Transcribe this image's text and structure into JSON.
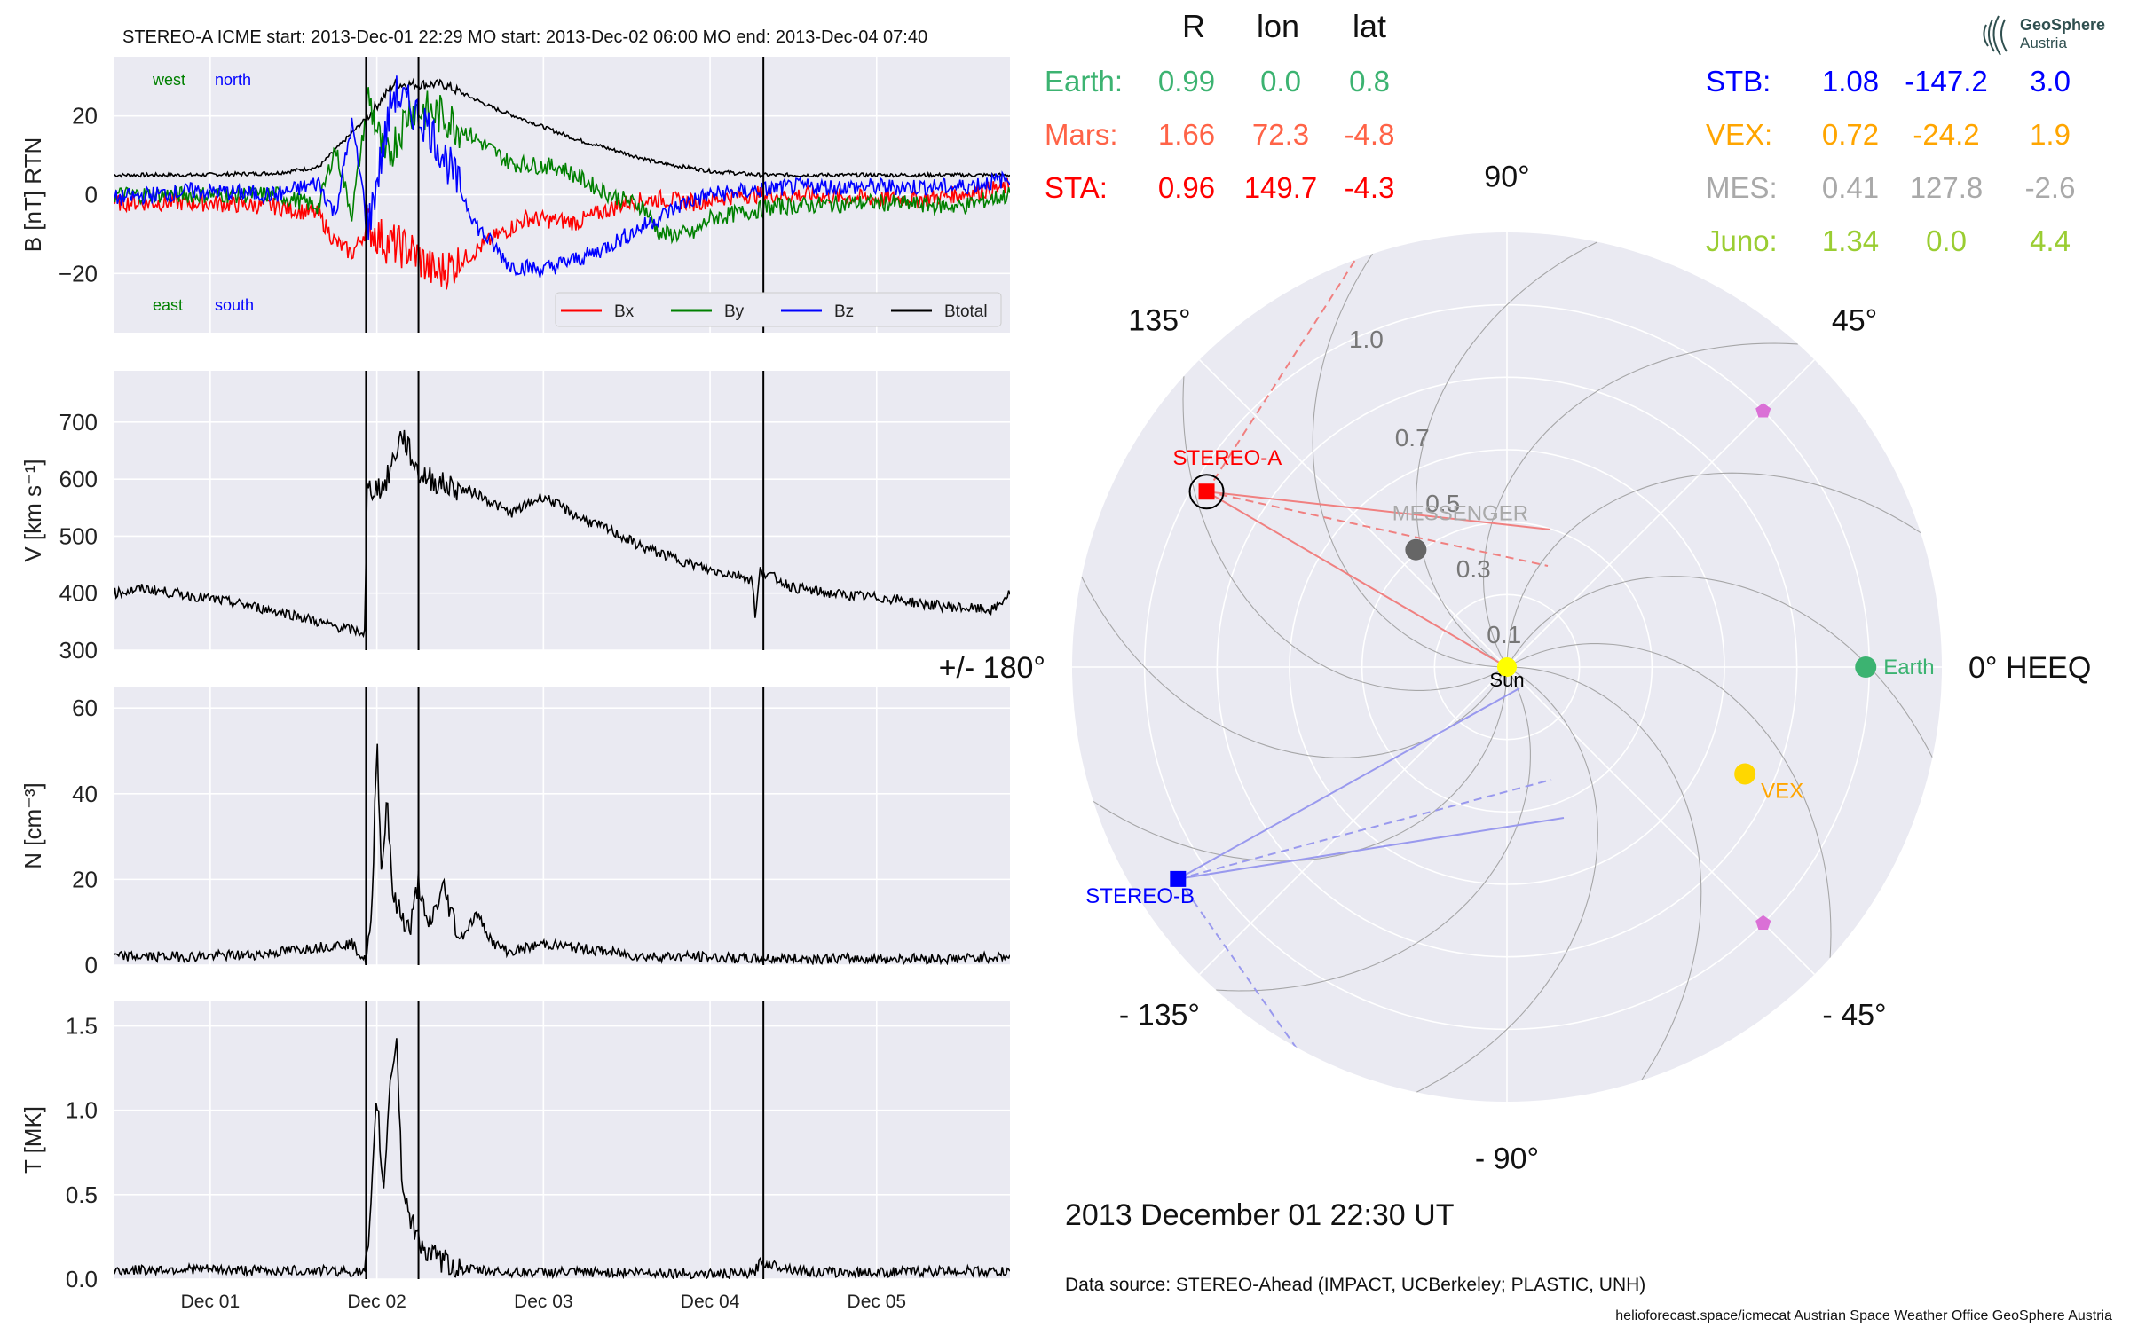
{
  "figure_title": "STEREO-A    ICME start: 2013-Dec-01 22:29   MO start: 2013-Dec-02 06:00   MO end: 2013-Dec-04 07:40",
  "timestamp": "2013 December 01  22:30 UT",
  "data_source": "Data source: STEREO-Ahead (IMPACT, UCBerkeley; PLASTIC, UNH)",
  "footer": "helioforecast.space/icmecat   Austrian Space Weather Office   GeoSphere Austria",
  "logo": {
    "line1": "GeoSphere",
    "line2": "Austria"
  },
  "colors": {
    "panel_bg": "#eaeaf2",
    "grid": "#ffffff",
    "bx": "#ff0000",
    "by": "#008000",
    "bz": "#0000ff",
    "btotal": "#000000",
    "earth": "#3cb371",
    "mars": "#ff6347",
    "sta": "#ff0000",
    "stb": "#0000ff",
    "vex": "#ffa500",
    "mes": "#a9a9a9",
    "juno": "#9acd32",
    "sun": "#ffff00"
  },
  "chart_data": [
    {
      "type": "line",
      "panel": "magnetic-field",
      "ylabel": "B [nT] RTN",
      "ylim": [
        -35,
        35
      ],
      "yticks": [
        "20",
        "0",
        "−20"
      ],
      "ytick_values": [
        20,
        0,
        -20
      ],
      "x_days": "days since 2013-11-30 00:00",
      "xlim": [
        1.42,
        6.8
      ],
      "annotations": {
        "west": "west",
        "north": "north",
        "east": "east",
        "south": "south"
      },
      "legend": {
        "placement": "lower-right",
        "entries": [
          "Bx",
          "By",
          "Bz",
          "Btotal"
        ]
      },
      "series": [
        {
          "name": "Btotal",
          "points": [
            [
              1.42,
              5
            ],
            [
              1.9,
              5
            ],
            [
              2.4,
              5.5
            ],
            [
              2.65,
              7
            ],
            [
              2.95,
              20
            ],
            [
              3.1,
              28
            ],
            [
              3.4,
              28
            ],
            [
              3.7,
              22
            ],
            [
              4.2,
              14
            ],
            [
              4.7,
              8
            ],
            [
              5.0,
              6
            ],
            [
              5.3,
              5
            ],
            [
              5.8,
              5
            ],
            [
              6.3,
              5
            ],
            [
              6.8,
              5
            ]
          ]
        },
        {
          "name": "Bx",
          "points": [
            [
              1.42,
              -2
            ],
            [
              1.9,
              -2
            ],
            [
              2.4,
              -3
            ],
            [
              2.65,
              -5
            ],
            [
              2.75,
              -12
            ],
            [
              2.85,
              -15
            ],
            [
              2.95,
              -8
            ],
            [
              3.05,
              -12
            ],
            [
              3.2,
              -14
            ],
            [
              3.35,
              -20
            ],
            [
              3.5,
              -17
            ],
            [
              3.7,
              -11
            ],
            [
              3.9,
              -6
            ],
            [
              4.2,
              -7
            ],
            [
              4.5,
              -2
            ],
            [
              4.7,
              -1
            ],
            [
              4.9,
              -2
            ],
            [
              5.2,
              0
            ],
            [
              5.5,
              0
            ],
            [
              6.0,
              -1
            ],
            [
              6.3,
              -1
            ],
            [
              6.8,
              2
            ]
          ]
        },
        {
          "name": "By",
          "points": [
            [
              1.42,
              0
            ],
            [
              1.9,
              0
            ],
            [
              2.4,
              0
            ],
            [
              2.65,
              -3
            ],
            [
              2.75,
              12
            ],
            [
              2.85,
              -5
            ],
            [
              2.95,
              25
            ],
            [
              3.05,
              8
            ],
            [
              3.2,
              22
            ],
            [
              3.4,
              20
            ],
            [
              3.6,
              14
            ],
            [
              3.8,
              8
            ],
            [
              4.1,
              7
            ],
            [
              4.4,
              0
            ],
            [
              4.6,
              -3
            ],
            [
              4.7,
              -10
            ],
            [
              4.9,
              -10
            ],
            [
              5.0,
              -6
            ],
            [
              5.4,
              -3
            ],
            [
              6.0,
              -2
            ],
            [
              6.5,
              -3
            ],
            [
              6.8,
              0
            ]
          ]
        },
        {
          "name": "Bz",
          "points": [
            [
              1.42,
              -1
            ],
            [
              1.9,
              1
            ],
            [
              2.4,
              0
            ],
            [
              2.65,
              3
            ],
            [
              2.75,
              -5
            ],
            [
              2.85,
              18
            ],
            [
              2.95,
              -8
            ],
            [
              3.1,
              26
            ],
            [
              3.3,
              18
            ],
            [
              3.45,
              6
            ],
            [
              3.6,
              -8
            ],
            [
              3.8,
              -18
            ],
            [
              4.0,
              -19
            ],
            [
              4.3,
              -15
            ],
            [
              4.6,
              -8
            ],
            [
              4.85,
              -2
            ],
            [
              5.0,
              0
            ],
            [
              5.5,
              2
            ],
            [
              6.0,
              2
            ],
            [
              6.5,
              2
            ],
            [
              6.8,
              4
            ]
          ]
        }
      ]
    },
    {
      "type": "line",
      "panel": "speed",
      "ylabel": "V [km s⁻¹]",
      "ylim": [
        300,
        790
      ],
      "yticks": [
        "700",
        "600",
        "500",
        "400",
        "300"
      ],
      "ytick_values": [
        700,
        600,
        500,
        400,
        300
      ],
      "series": [
        {
          "name": "V",
          "points": [
            [
              1.42,
              400
            ],
            [
              1.6,
              408
            ],
            [
              1.9,
              395
            ],
            [
              2.2,
              380
            ],
            [
              2.5,
              362
            ],
            [
              2.7,
              345
            ],
            [
              2.93,
              330
            ],
            [
              2.94,
              580
            ],
            [
              3.05,
              590
            ],
            [
              3.15,
              680
            ],
            [
              3.25,
              610
            ],
            [
              3.4,
              590
            ],
            [
              3.6,
              575
            ],
            [
              3.8,
              540
            ],
            [
              4.0,
              570
            ],
            [
              4.2,
              535
            ],
            [
              4.4,
              510
            ],
            [
              4.6,
              480
            ],
            [
              4.8,
              460
            ],
            [
              5.0,
              440
            ],
            [
              5.2,
              430
            ],
            [
              5.26,
              420
            ],
            [
              5.27,
              350
            ],
            [
              5.3,
              440
            ],
            [
              5.5,
              410
            ],
            [
              5.7,
              400
            ],
            [
              5.9,
              395
            ],
            [
              6.1,
              390
            ],
            [
              6.3,
              380
            ],
            [
              6.5,
              375
            ],
            [
              6.7,
              370
            ],
            [
              6.8,
              400
            ]
          ]
        }
      ]
    },
    {
      "type": "line",
      "panel": "density",
      "ylabel": "N [cm⁻³]",
      "ylim": [
        0,
        65
      ],
      "yticks": [
        "60",
        "40",
        "20",
        "0"
      ],
      "ytick_values": [
        60,
        40,
        20,
        0
      ],
      "series": [
        {
          "name": "N",
          "points": [
            [
              1.42,
              2
            ],
            [
              1.9,
              2
            ],
            [
              2.3,
              2.5
            ],
            [
              2.6,
              4
            ],
            [
              2.85,
              5
            ],
            [
              2.93,
              1
            ],
            [
              2.97,
              10
            ],
            [
              3.0,
              54
            ],
            [
              3.03,
              20
            ],
            [
              3.06,
              40
            ],
            [
              3.1,
              15
            ],
            [
              3.2,
              8
            ],
            [
              3.25,
              20
            ],
            [
              3.3,
              8
            ],
            [
              3.4,
              18
            ],
            [
              3.5,
              6
            ],
            [
              3.6,
              12
            ],
            [
              3.7,
              5
            ],
            [
              3.8,
              3
            ],
            [
              4.0,
              5
            ],
            [
              4.2,
              4
            ],
            [
              4.4,
              3
            ],
            [
              4.6,
              2
            ],
            [
              4.9,
              2
            ],
            [
              5.2,
              1.5
            ],
            [
              5.5,
              1.5
            ],
            [
              6.0,
              1.5
            ],
            [
              6.5,
              1.5
            ],
            [
              6.8,
              2
            ]
          ]
        }
      ]
    },
    {
      "type": "line",
      "panel": "temperature",
      "ylabel": "T [MK]",
      "ylim": [
        0,
        1.65
      ],
      "yticks": [
        "1.5",
        "1.0",
        "0.5",
        "0.0"
      ],
      "ytick_values": [
        1.5,
        1.0,
        0.5,
        0.0
      ],
      "xticks": [
        "Dec 01",
        "Dec 02",
        "Dec 03",
        "Dec 04",
        "Dec 05"
      ],
      "xtick_values": [
        2,
        3,
        4,
        5,
        6
      ],
      "series": [
        {
          "name": "T",
          "points": [
            [
              1.42,
              0.05
            ],
            [
              1.9,
              0.06
            ],
            [
              2.3,
              0.05
            ],
            [
              2.7,
              0.05
            ],
            [
              2.93,
              0.04
            ],
            [
              2.96,
              0.3
            ],
            [
              3.0,
              1.1
            ],
            [
              3.04,
              0.5
            ],
            [
              3.08,
              1.2
            ],
            [
              3.12,
              1.42
            ],
            [
              3.15,
              0.6
            ],
            [
              3.2,
              0.35
            ],
            [
              3.3,
              0.15
            ],
            [
              3.5,
              0.06
            ],
            [
              3.8,
              0.04
            ],
            [
              4.2,
              0.04
            ],
            [
              4.6,
              0.04
            ],
            [
              5.0,
              0.03
            ],
            [
              5.26,
              0.03
            ],
            [
              5.3,
              0.1
            ],
            [
              5.6,
              0.04
            ],
            [
              6.0,
              0.04
            ],
            [
              6.5,
              0.05
            ],
            [
              6.8,
              0.04
            ]
          ]
        }
      ]
    },
    {
      "type": "scatter",
      "panel": "polar-position",
      "projection": "polar",
      "rlim": [
        0,
        1.2
      ],
      "r_tick_labels": [
        "0.1",
        "0.3",
        "0.5",
        "0.7",
        "1.0"
      ],
      "r_tick_values": [
        0.1,
        0.3,
        0.5,
        0.7,
        1.0
      ],
      "angle_labels": [
        "90°",
        "45°",
        "0° HEEQ",
        "- 45°",
        "- 90°",
        "- 135°",
        "+/- 180°",
        "135°"
      ],
      "angle_values": [
        90,
        45,
        0,
        -45,
        -90,
        -135,
        180,
        135
      ],
      "bodies": [
        {
          "name": "Sun",
          "label": "Sun",
          "r": 0.0,
          "lon": 0.0,
          "marker": "circle",
          "color": "#ffff00"
        },
        {
          "name": "Earth",
          "label": "Earth",
          "r": 0.99,
          "lon": 0.0,
          "marker": "circle",
          "color": "#3cb371"
        },
        {
          "name": "VEX",
          "label": "VEX",
          "r": 0.72,
          "lon": -24.2,
          "marker": "circle",
          "color": "#ffd700"
        },
        {
          "name": "MESSENGER",
          "label": "MESSENGER",
          "r": 0.41,
          "lon": 127.8,
          "marker": "circle",
          "color": "#666666"
        },
        {
          "name": "STEREO-A",
          "label": "STEREO-A",
          "r": 0.96,
          "lon": 149.7,
          "marker": "square",
          "color": "#ff0000"
        },
        {
          "name": "STEREO-B",
          "label": "STEREO-B",
          "r": 1.08,
          "lon": -147.2,
          "marker": "square",
          "color": "#0000ff"
        },
        {
          "name": "Mars",
          "label": "",
          "r": 1.66,
          "lon": 72.3,
          "marker": "none",
          "color": "#ff6347"
        },
        {
          "name": "Juno-1",
          "label": "",
          "r": 1.0,
          "lon": 45.0,
          "marker": "pentagon",
          "color": "#da70d6"
        },
        {
          "name": "Juno-2",
          "label": "",
          "r": 1.0,
          "lon": -45.0,
          "marker": "pentagon",
          "color": "#da70d6"
        }
      ]
    }
  ],
  "position_table": {
    "headers": [
      "R",
      "lon",
      "lat"
    ],
    "left": [
      {
        "name": "Earth:",
        "r": "0.99",
        "lon": "0.0",
        "lat": "0.8",
        "color": "#3cb371"
      },
      {
        "name": "Mars:",
        "r": "1.66",
        "lon": "72.3",
        "lat": "-4.8",
        "color": "#ff6347"
      },
      {
        "name": "STA:",
        "r": "0.96",
        "lon": "149.7",
        "lat": "-4.3",
        "color": "#ff0000"
      }
    ],
    "right": [
      {
        "name": "STB:",
        "r": "1.08",
        "lon": "-147.2",
        "lat": "3.0",
        "color": "#0000ff"
      },
      {
        "name": "VEX:",
        "r": "0.72",
        "lon": "-24.2",
        "lat": "1.9",
        "color": "#ffa500"
      },
      {
        "name": "MES:",
        "r": "0.41",
        "lon": "127.8",
        "lat": "-2.6",
        "color": "#a9a9a9"
      },
      {
        "name": "Juno:",
        "r": "1.34",
        "lon": "0.0",
        "lat": "4.4",
        "color": "#9acd32"
      }
    ]
  },
  "event_lines": [
    {
      "name": "ICME start",
      "x": 2.935
    },
    {
      "name": "MO start",
      "x": 3.25
    },
    {
      "name": "MO end",
      "x": 5.32
    }
  ]
}
